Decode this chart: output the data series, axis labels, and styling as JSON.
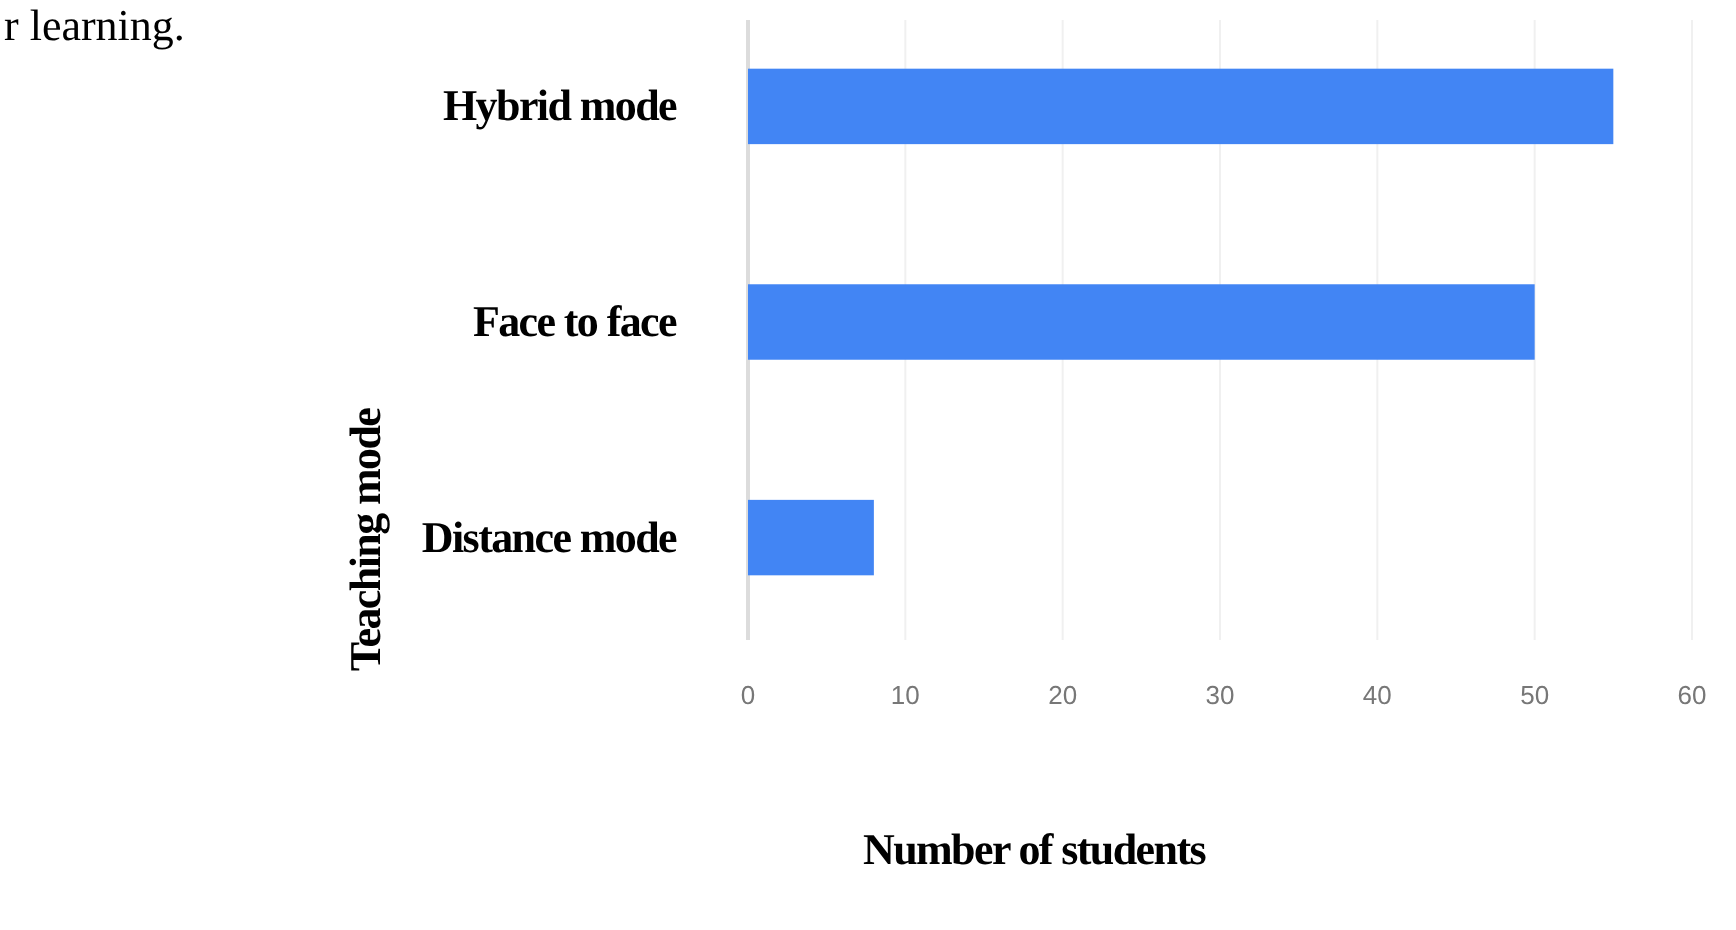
{
  "chart_data": {
    "type": "bar",
    "orientation": "horizontal",
    "categories": [
      "Hybrid mode",
      "Face to face",
      "Distance mode"
    ],
    "values": [
      55,
      50,
      8
    ],
    "color": "#4285f4",
    "xlim": [
      0,
      60
    ],
    "xticks": [
      0,
      10,
      20,
      30,
      40,
      50,
      60
    ],
    "grid": "x",
    "xlabel": "Number of students",
    "ylabel": "Teaching mode",
    "annotations": [
      "r learning."
    ]
  }
}
